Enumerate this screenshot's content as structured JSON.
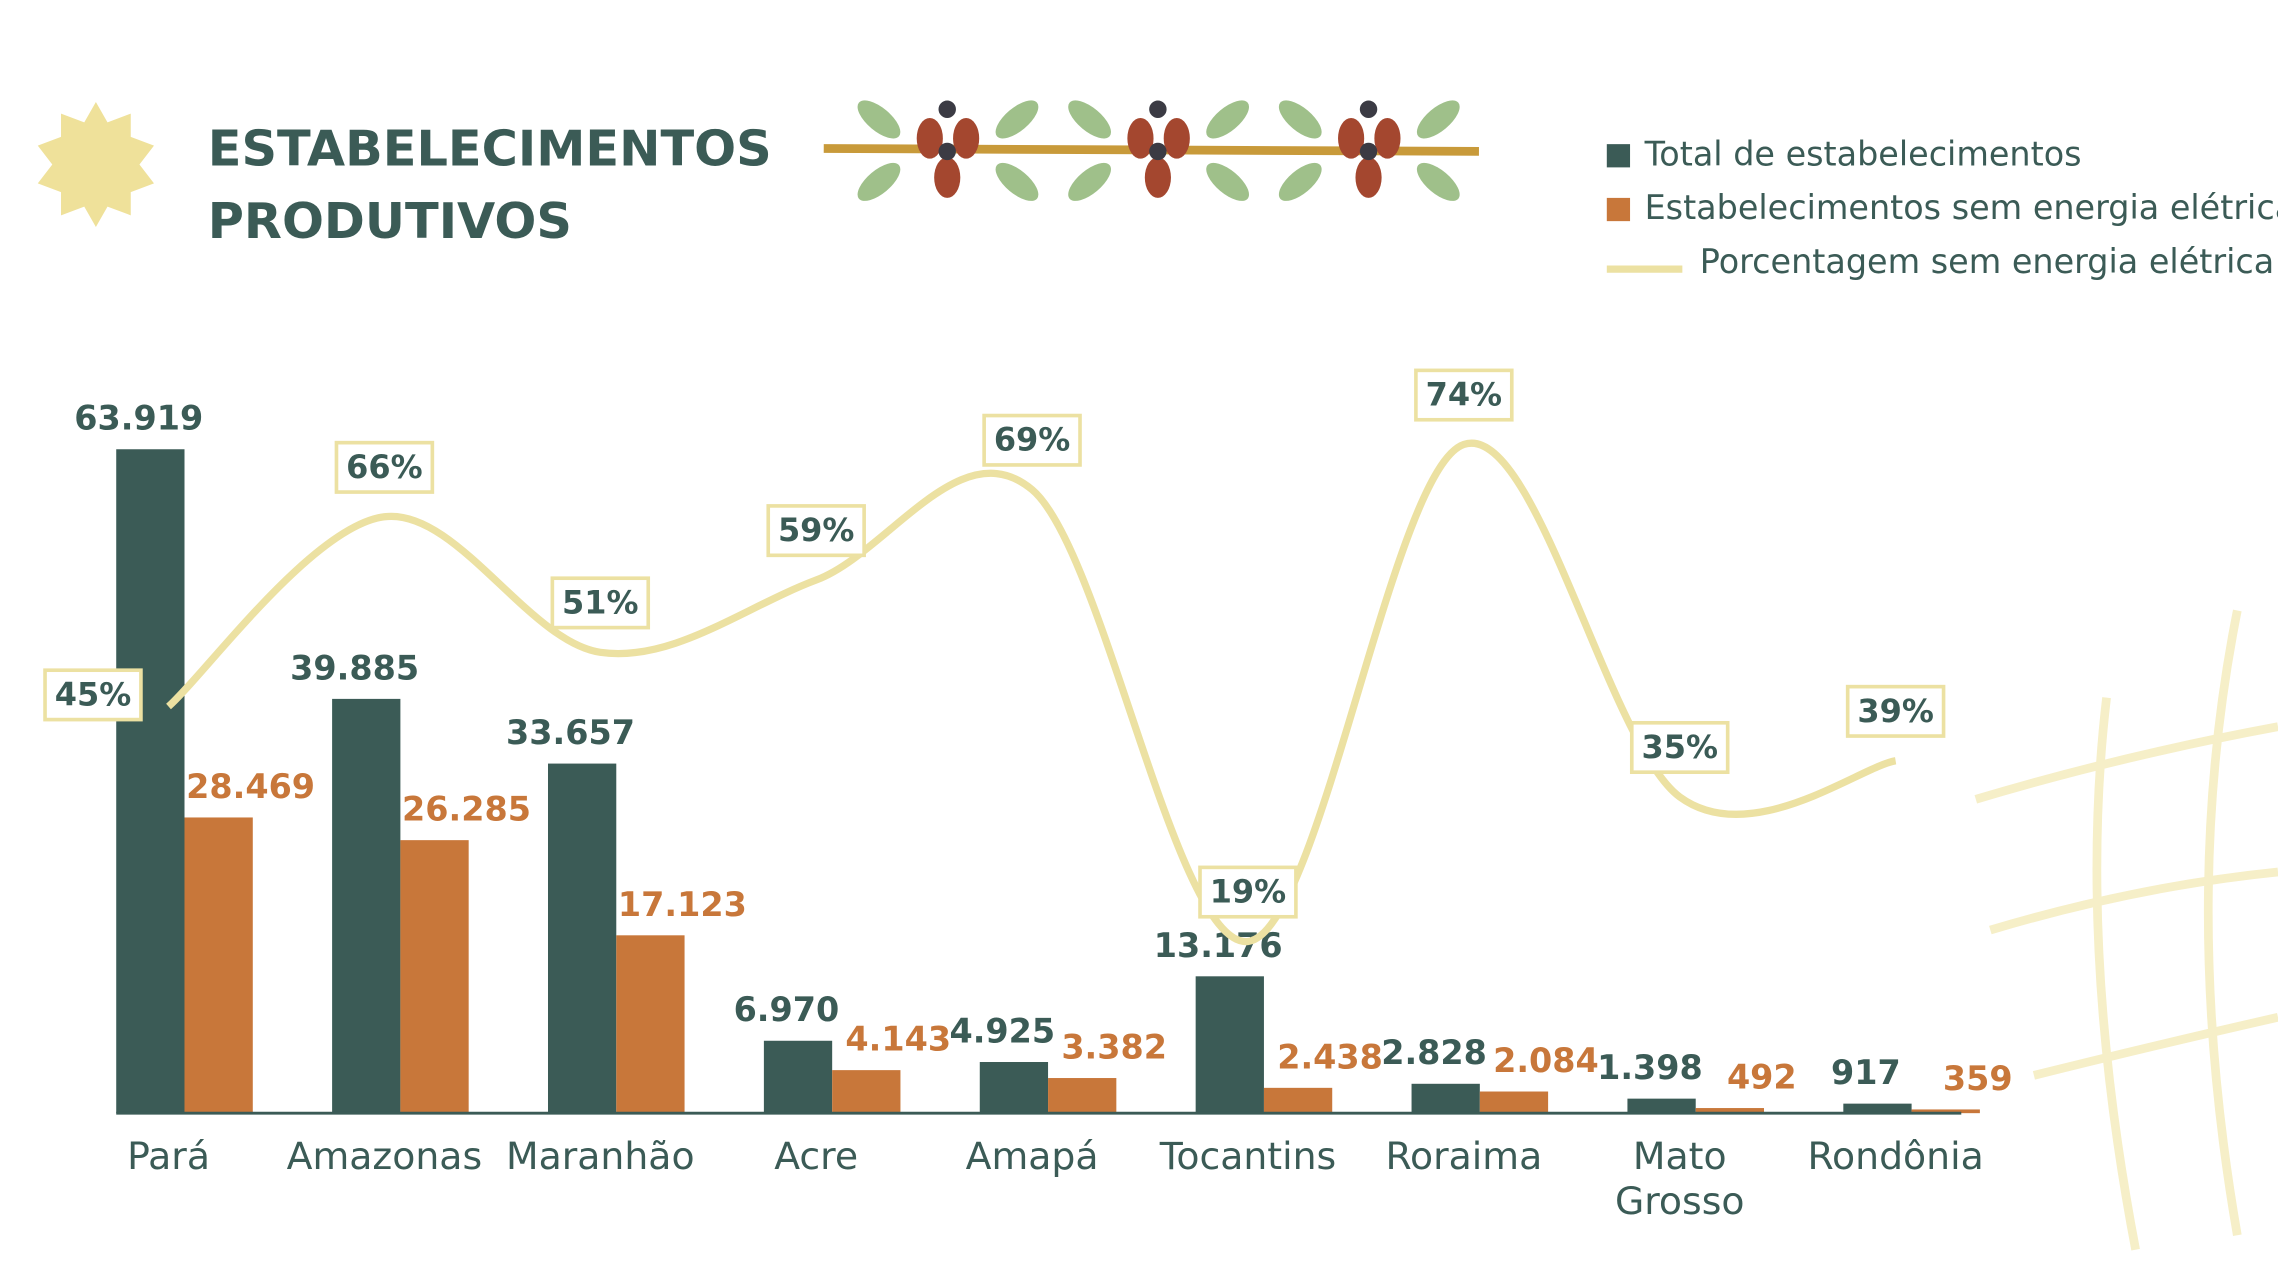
{
  "chart_data": {
    "type": "bar",
    "title": "ESTABELECIMENTOS PRODUTIVOS",
    "categories": [
      "Pará",
      "Amazonas",
      "Maranhão",
      "Acre",
      "Amapá",
      "Tocantins",
      "Roraima",
      "Mato Grosso",
      "Rondônia"
    ],
    "series": [
      {
        "name": "Total de estabelecimentos",
        "color": "#3b5b56",
        "values": [
          63919,
          39885,
          33657,
          6970,
          4925,
          13176,
          2828,
          1398,
          917
        ],
        "value_labels": [
          "63.919",
          "39.885",
          "33.657",
          "6.970",
          "4.925",
          "13.176",
          "2.828",
          "1.398",
          "917"
        ]
      },
      {
        "name": "Estabelecimentos sem energia elétrica",
        "color": "#c8773a",
        "values": [
          28469,
          26285,
          17123,
          4143,
          3382,
          2438,
          2084,
          492,
          359
        ],
        "value_labels": [
          "28.469",
          "26.285",
          "17.123",
          "4.143",
          "3.382",
          "2.438",
          "2.084",
          "492",
          "359"
        ]
      },
      {
        "name": "Porcentagem sem energia elétrica",
        "type": "line",
        "axis": "y2",
        "color": "#ece1a2",
        "values": [
          45,
          66,
          51,
          59,
          69,
          19,
          74,
          35,
          39
        ],
        "value_labels": [
          "45%",
          "66%",
          "51%",
          "59%",
          "69%",
          "19%",
          "74%",
          "35%",
          "39%"
        ]
      }
    ],
    "ylim": [
      0,
      87000
    ],
    "y2lim": [
      0,
      100
    ],
    "legend": "top-right"
  }
}
